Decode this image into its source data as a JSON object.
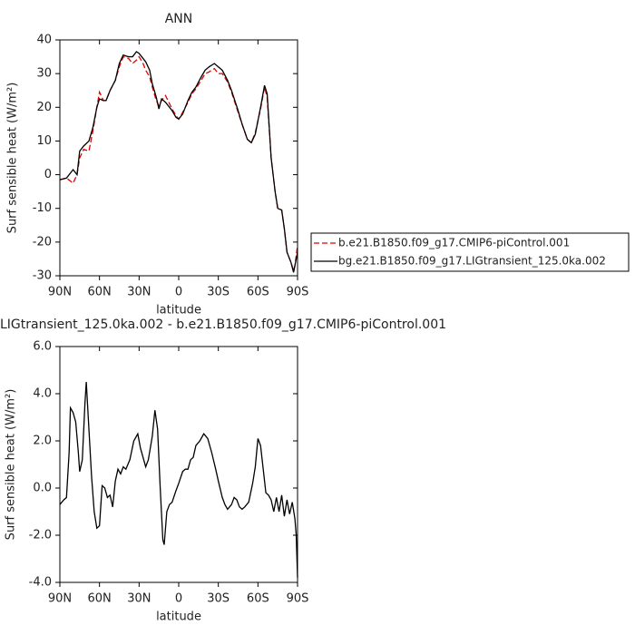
{
  "chart_data": [
    {
      "type": "line",
      "title": "ANN",
      "xlabel": "latitude",
      "ylabel": "Surf sensible heat (W/m²)",
      "xlim": [
        90,
        -90
      ],
      "xticks": [
        {
          "value": 90,
          "label": "90N"
        },
        {
          "value": 60,
          "label": "60N"
        },
        {
          "value": 30,
          "label": "30N"
        },
        0,
        {
          "value": -30,
          "label": "30S"
        },
        {
          "value": -60,
          "label": "60S"
        },
        {
          "value": -90,
          "label": "90S"
        }
      ],
      "ylim": [
        -30,
        40
      ],
      "yticks": [
        -30,
        -20,
        -10,
        0,
        10,
        20,
        30,
        40
      ],
      "legend": "right",
      "x": [
        90,
        85,
        80,
        77,
        75,
        72,
        68,
        65,
        62,
        60,
        57,
        55,
        52,
        48,
        45,
        42,
        38,
        35,
        32,
        30,
        27,
        25,
        22,
        20,
        17,
        15,
        13,
        10,
        5,
        2,
        0,
        -3,
        -7,
        -10,
        -13,
        -17,
        -20,
        -23,
        -27,
        -30,
        -33,
        -37,
        -40,
        -45,
        -48,
        -52,
        -55,
        -58,
        -62,
        -65,
        -67,
        -70,
        -73,
        -75,
        -78,
        -80,
        -82,
        -85,
        -87,
        -88,
        -90
      ],
      "series": [
        {
          "name": "b.e21.B1850.f09_g17.CMIP6-piControl.001",
          "color": "#e00000",
          "linestyle": "dashed",
          "values": [
            -1.5,
            -1,
            -2.5,
            0,
            5,
            7.5,
            7,
            13,
            20,
            24.5,
            22,
            22,
            25,
            28,
            32,
            35,
            34.5,
            33,
            34,
            35,
            33,
            31,
            29,
            26,
            22,
            20.5,
            22,
            23.5,
            19.5,
            17.5,
            16.5,
            18.5,
            21.5,
            24,
            25.5,
            28,
            30,
            30.5,
            31.5,
            30,
            30,
            27.5,
            24.5,
            18.5,
            15,
            10.5,
            9.5,
            12.5,
            19.5,
            26,
            23,
            5,
            -5,
            -10,
            -10.5,
            -16,
            -23,
            -26,
            -28.5,
            -27,
            -21
          ]
        },
        {
          "name": "bg.e21.B1850.f09_g17.LIGtransient_125.0ka.002",
          "color": "#000000",
          "linestyle": "solid",
          "values": [
            -1.5,
            -1,
            1.5,
            0,
            7,
            8.5,
            10,
            14,
            20,
            22.5,
            22,
            22,
            25,
            28,
            33,
            35.5,
            35,
            35,
            36.5,
            36,
            34.5,
            33.5,
            31,
            27,
            23,
            19.5,
            22.5,
            21.5,
            19,
            17,
            16.5,
            18,
            22,
            24.5,
            26,
            29,
            31,
            32,
            33,
            32,
            31,
            28,
            25,
            19,
            15,
            10.5,
            9.5,
            12,
            20,
            26.5,
            24,
            5,
            -5,
            -10,
            -10.5,
            -16,
            -23,
            -26,
            -29,
            -27,
            -23
          ]
        }
      ]
    },
    {
      "type": "line",
      "title": "LIGtransient_125.0ka.002 - b.e21.B1850.f09_g17.CMIP6-piControl.001",
      "xlabel": "latitude",
      "ylabel": "Surf sensible heat (W/m²)",
      "xlim": [
        90,
        -90
      ],
      "xticks": [
        {
          "value": 90,
          "label": "90N"
        },
        {
          "value": 60,
          "label": "60N"
        },
        {
          "value": 30,
          "label": "30N"
        },
        0,
        {
          "value": -30,
          "label": "30S"
        },
        {
          "value": -60,
          "label": "60S"
        },
        {
          "value": -90,
          "label": "90S"
        }
      ],
      "ylim": [
        -4,
        6
      ],
      "yticks": [
        {
          "value": -4,
          "label": "-4.0"
        },
        {
          "value": -2,
          "label": "-2.0"
        },
        {
          "value": 0,
          "label": "0.0"
        },
        {
          "value": 2,
          "label": "2.0"
        },
        {
          "value": 4,
          "label": "4.0"
        },
        {
          "value": 6,
          "label": "6.0"
        }
      ],
      "x": [
        90,
        87,
        85,
        83,
        82,
        80,
        78,
        76,
        75,
        73,
        71,
        70,
        68,
        66,
        64,
        62,
        60,
        58,
        56,
        54,
        52,
        50,
        48,
        46,
        44,
        42,
        40,
        37,
        34,
        31,
        29,
        27,
        25,
        23,
        20,
        18,
        16,
        14,
        12,
        11,
        9,
        7,
        5,
        2,
        0,
        -3,
        -5,
        -7,
        -9,
        -11,
        -13,
        -16,
        -19,
        -22,
        -25,
        -28,
        -30,
        -33,
        -35,
        -37,
        -40,
        -42,
        -44,
        -46,
        -48,
        -50,
        -53,
        -56,
        -58,
        -60,
        -62,
        -64,
        -66,
        -68,
        -70,
        -72,
        -74,
        -76,
        -78,
        -80,
        -82,
        -84,
        -86,
        -88,
        -89,
        -90
      ],
      "series": [
        {
          "color": "#000000",
          "linestyle": "solid",
          "values": [
            -0.7,
            -0.5,
            -0.4,
            1.5,
            3.4,
            3.2,
            2.8,
            1.5,
            0.7,
            1.2,
            3.6,
            4.5,
            2.5,
            0.5,
            -1.0,
            -1.7,
            -1.6,
            0.1,
            0.0,
            -0.4,
            -0.3,
            -0.8,
            0.3,
            0.8,
            0.6,
            0.9,
            0.8,
            1.2,
            2.0,
            2.3,
            1.7,
            1.3,
            0.9,
            1.2,
            2.2,
            3.3,
            2.5,
            0.0,
            -2.2,
            -2.4,
            -1.0,
            -0.7,
            -0.6,
            -0.1,
            0.2,
            0.7,
            0.8,
            0.8,
            1.2,
            1.3,
            1.8,
            2.0,
            2.3,
            2.1,
            1.5,
            0.8,
            0.3,
            -0.4,
            -0.7,
            -0.9,
            -0.7,
            -0.4,
            -0.5,
            -0.8,
            -0.9,
            -0.8,
            -0.6,
            0.2,
            0.9,
            2.1,
            1.8,
            0.8,
            -0.2,
            -0.3,
            -0.5,
            -1.0,
            -0.4,
            -1.0,
            -0.3,
            -1.2,
            -0.5,
            -1.1,
            -0.6,
            -1.3,
            -2.0,
            -3.8
          ]
        }
      ]
    }
  ]
}
